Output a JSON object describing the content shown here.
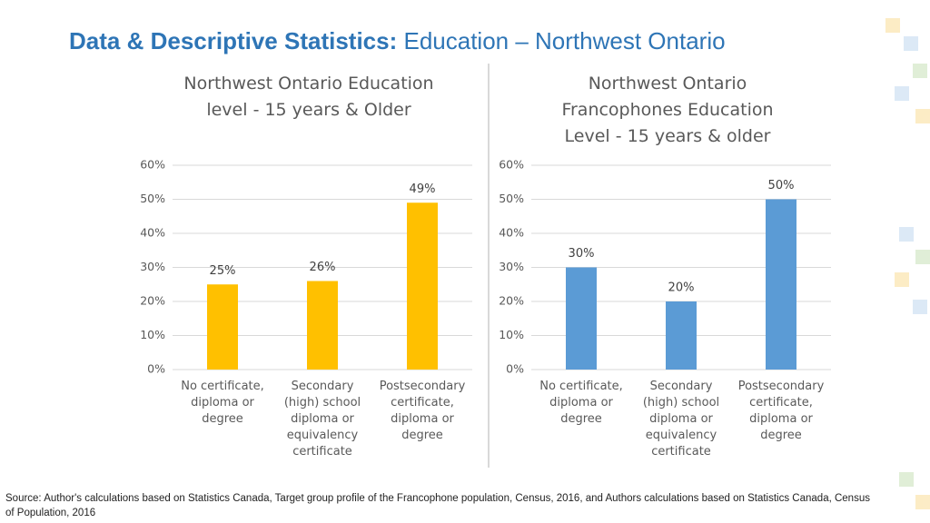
{
  "header": {
    "title_bold": "Data & Descriptive Statistics:",
    "title_rest": "Education – Northwest Ontario"
  },
  "chart_data": [
    {
      "type": "bar",
      "title": "Northwest Ontario Education level - 15 years & Older",
      "categories": [
        "No certificate, diploma or degree",
        "Secondary (high) school diploma or equivalency certificate",
        "Postsecondary certificate, diploma or degree"
      ],
      "values": [
        25,
        26,
        49
      ],
      "value_labels": [
        "25%",
        "26%",
        "49%"
      ],
      "color": "#ffc000",
      "ylim": [
        0,
        60
      ],
      "yticks": [
        {
          "value": 0,
          "label": "0%"
        },
        {
          "value": 10,
          "label": "10%"
        },
        {
          "value": 20,
          "label": "20%"
        },
        {
          "value": 30,
          "label": "30%"
        },
        {
          "value": 40,
          "label": "40%"
        },
        {
          "value": 50,
          "label": "50%"
        },
        {
          "value": 60,
          "label": "60%"
        }
      ],
      "grid": true
    },
    {
      "type": "bar",
      "title": "Northwest Ontario Francophones Education Level - 15 years & older",
      "categories": [
        "No certificate, diploma or degree",
        "Secondary (high) school diploma or equivalency certificate",
        "Postsecondary certificate, diploma or degree"
      ],
      "values": [
        30,
        20,
        50
      ],
      "value_labels": [
        "30%",
        "20%",
        "50%"
      ],
      "color": "#5b9bd5",
      "ylim": [
        0,
        60
      ],
      "yticks": [
        {
          "value": 0,
          "label": "0%"
        },
        {
          "value": 10,
          "label": "10%"
        },
        {
          "value": 20,
          "label": "20%"
        },
        {
          "value": 30,
          "label": "30%"
        },
        {
          "value": 40,
          "label": "40%"
        },
        {
          "value": 50,
          "label": "50%"
        },
        {
          "value": 60,
          "label": "60%"
        }
      ],
      "grid": true
    }
  ],
  "source": "Source: Author's calculations based on Statistics Canada, Target group profile of the Francophone population, Census, 2016, and Authors calculations based on Statistics Canada, Census of Population, 2016"
}
